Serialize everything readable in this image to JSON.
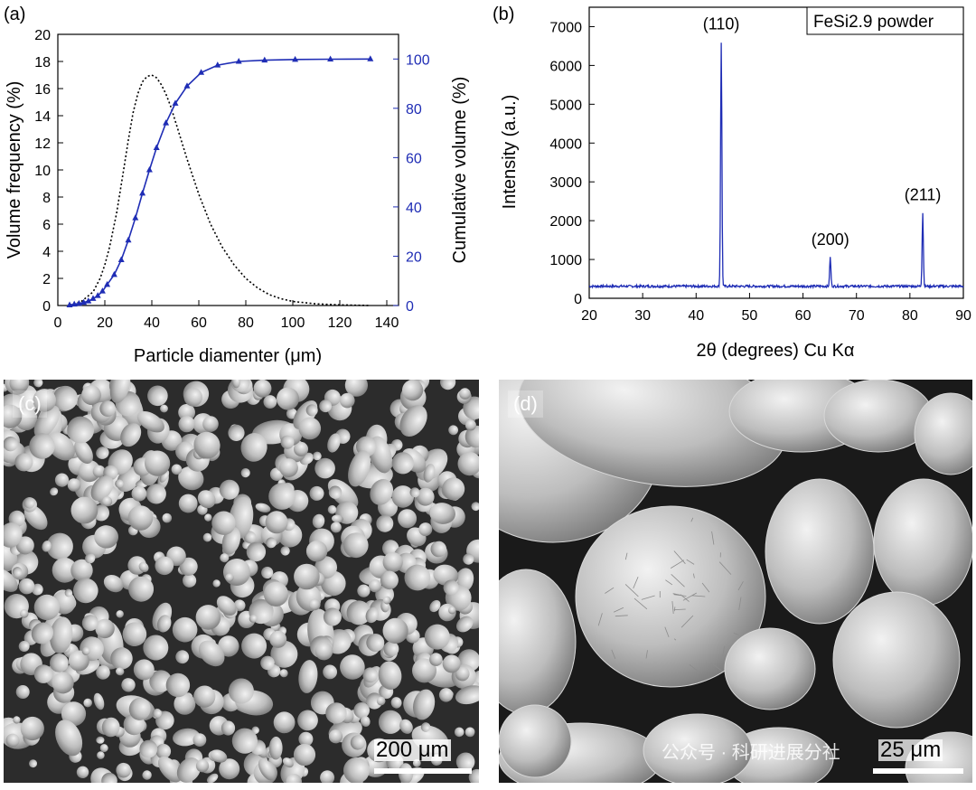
{
  "watermark": "公众号 · 科研进展分社",
  "panels": {
    "c": {
      "letter": "(c)",
      "scale_label": "200 μm"
    },
    "d": {
      "letter": "(d)",
      "scale_label": "25 μm"
    }
  },
  "chart_data": [
    {
      "panel": "(a)",
      "type": "line",
      "xlabel": "Particle diamenter (μm)",
      "ylabel": "Volume frequency (%)",
      "y2label": "Cumulative volume (%)",
      "xlim": [
        0,
        145
      ],
      "ylim": [
        0,
        20
      ],
      "y2lim": [
        0,
        110
      ],
      "xticks": [
        0,
        20,
        40,
        60,
        80,
        100,
        120,
        140
      ],
      "yticks": [
        0,
        2,
        4,
        6,
        8,
        10,
        12,
        14,
        16,
        18,
        20
      ],
      "y2ticks": [
        0,
        20,
        40,
        60,
        80,
        100
      ],
      "grid": false,
      "series": [
        {
          "axis": "left",
          "style": "dotted",
          "color": "#000000",
          "x": [
            5,
            10,
            15,
            18,
            20,
            22,
            25,
            28,
            30,
            32,
            34,
            36,
            38,
            40,
            42,
            44,
            46,
            48,
            50,
            55,
            60,
            65,
            70,
            75,
            80,
            85,
            90,
            95,
            100,
            110,
            120,
            133
          ],
          "y": [
            0.05,
            0.3,
            1.0,
            2.0,
            3.0,
            4.3,
            6.8,
            10.0,
            12.2,
            14.2,
            15.6,
            16.5,
            16.9,
            17.0,
            16.8,
            16.3,
            15.6,
            14.7,
            13.6,
            10.8,
            8.2,
            6.0,
            4.3,
            3.0,
            2.0,
            1.3,
            0.8,
            0.5,
            0.3,
            0.12,
            0.05,
            0.0
          ]
        },
        {
          "axis": "right",
          "style": "solid-triangles",
          "color": "#1f2db5",
          "x": [
            5,
            7,
            9,
            11,
            13,
            15,
            17,
            19,
            21,
            24,
            27,
            30,
            33,
            36,
            39,
            42,
            46,
            50,
            55,
            61,
            68,
            77,
            88,
            101,
            116,
            133
          ],
          "y": [
            0.2,
            0.5,
            0.8,
            1.2,
            1.8,
            2.8,
            4.0,
            5.8,
            8.5,
            12.5,
            18.5,
            26.5,
            35.5,
            45.5,
            55.0,
            64.0,
            74.0,
            82.0,
            89.0,
            94.5,
            97.5,
            99.0,
            99.5,
            99.8,
            99.9,
            100.0
          ]
        }
      ]
    },
    {
      "panel": "(b)",
      "type": "line",
      "xlabel": "2θ (degrees) Cu Kα",
      "ylabel": "Intensity (a.u.)",
      "legend": "FeSi2.9 powder",
      "legend_position": "top-right",
      "xlim": [
        20,
        90
      ],
      "ylim": [
        0,
        7500
      ],
      "xticks": [
        20,
        30,
        40,
        50,
        60,
        70,
        80,
        90
      ],
      "yticks": [
        0,
        1000,
        2000,
        3000,
        4000,
        5000,
        6000,
        7000
      ],
      "grid": false,
      "baseline": 310,
      "color": "#1f2db5",
      "peaks": [
        {
          "label": "(110)",
          "x": 44.7,
          "y": 6600
        },
        {
          "label": "(200)",
          "x": 65.1,
          "y": 1050
        },
        {
          "label": "(211)",
          "x": 82.4,
          "y": 2200
        }
      ]
    }
  ]
}
